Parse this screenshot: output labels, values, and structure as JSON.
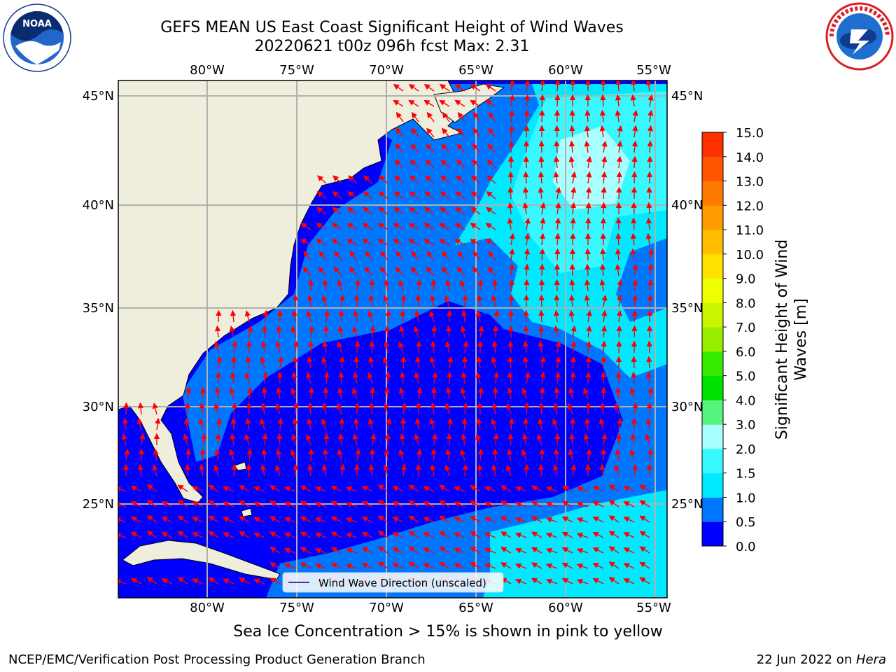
{
  "header": {
    "title_line1": "GEFS MEAN US East Coast Significant Height of Wind Waves",
    "title_line2": "20220621 t00z 096h fcst   Max: 2.31"
  },
  "logos": {
    "left": {
      "name": "noaa-logo",
      "text": "NOAA"
    },
    "right": {
      "name": "nws-logo"
    }
  },
  "map": {
    "lon_labels": [
      "80°W",
      "75°W",
      "70°W",
      "65°W",
      "60°W",
      "55°W"
    ],
    "lat_labels": [
      "45°N",
      "40°N",
      "35°N",
      "30°N",
      "25°N"
    ],
    "legend_label": "Wind Wave Direction (unscaled)",
    "arrow_color": "#ff0000",
    "land_color": "#efeedd"
  },
  "colorbar": {
    "label_line1": "Significant Height of Wind",
    "label_line2": "Waves [m]",
    "ticks": [
      "0.0",
      "0.5",
      "1.0",
      "1.5",
      "2.0",
      "3.0",
      "4.0",
      "5.0",
      "6.0",
      "7.0",
      "8.0",
      "9.0",
      "10.0",
      "11.0",
      "12.0",
      "13.0",
      "14.0",
      "15.0"
    ],
    "colors": [
      "#0000ff",
      "#0077ff",
      "#00eaff",
      "#37f8ff",
      "#a8ffff",
      "#55f580",
      "#00e200",
      "#37eb00",
      "#99ee00",
      "#c8f500",
      "#eeff00",
      "#ffe100",
      "#ffbe00",
      "#ff9c00",
      "#ff7a00",
      "#ff5500",
      "#ff3000",
      "#ff0000"
    ]
  },
  "ice_note": "Sea Ice Concentration > 15% is shown in pink to yellow",
  "footer": {
    "left": "NCEP/EMC/Verification Post Processing Product Generation Branch",
    "right_date": "22 Jun 2022 on ",
    "right_host": "Hera"
  }
}
